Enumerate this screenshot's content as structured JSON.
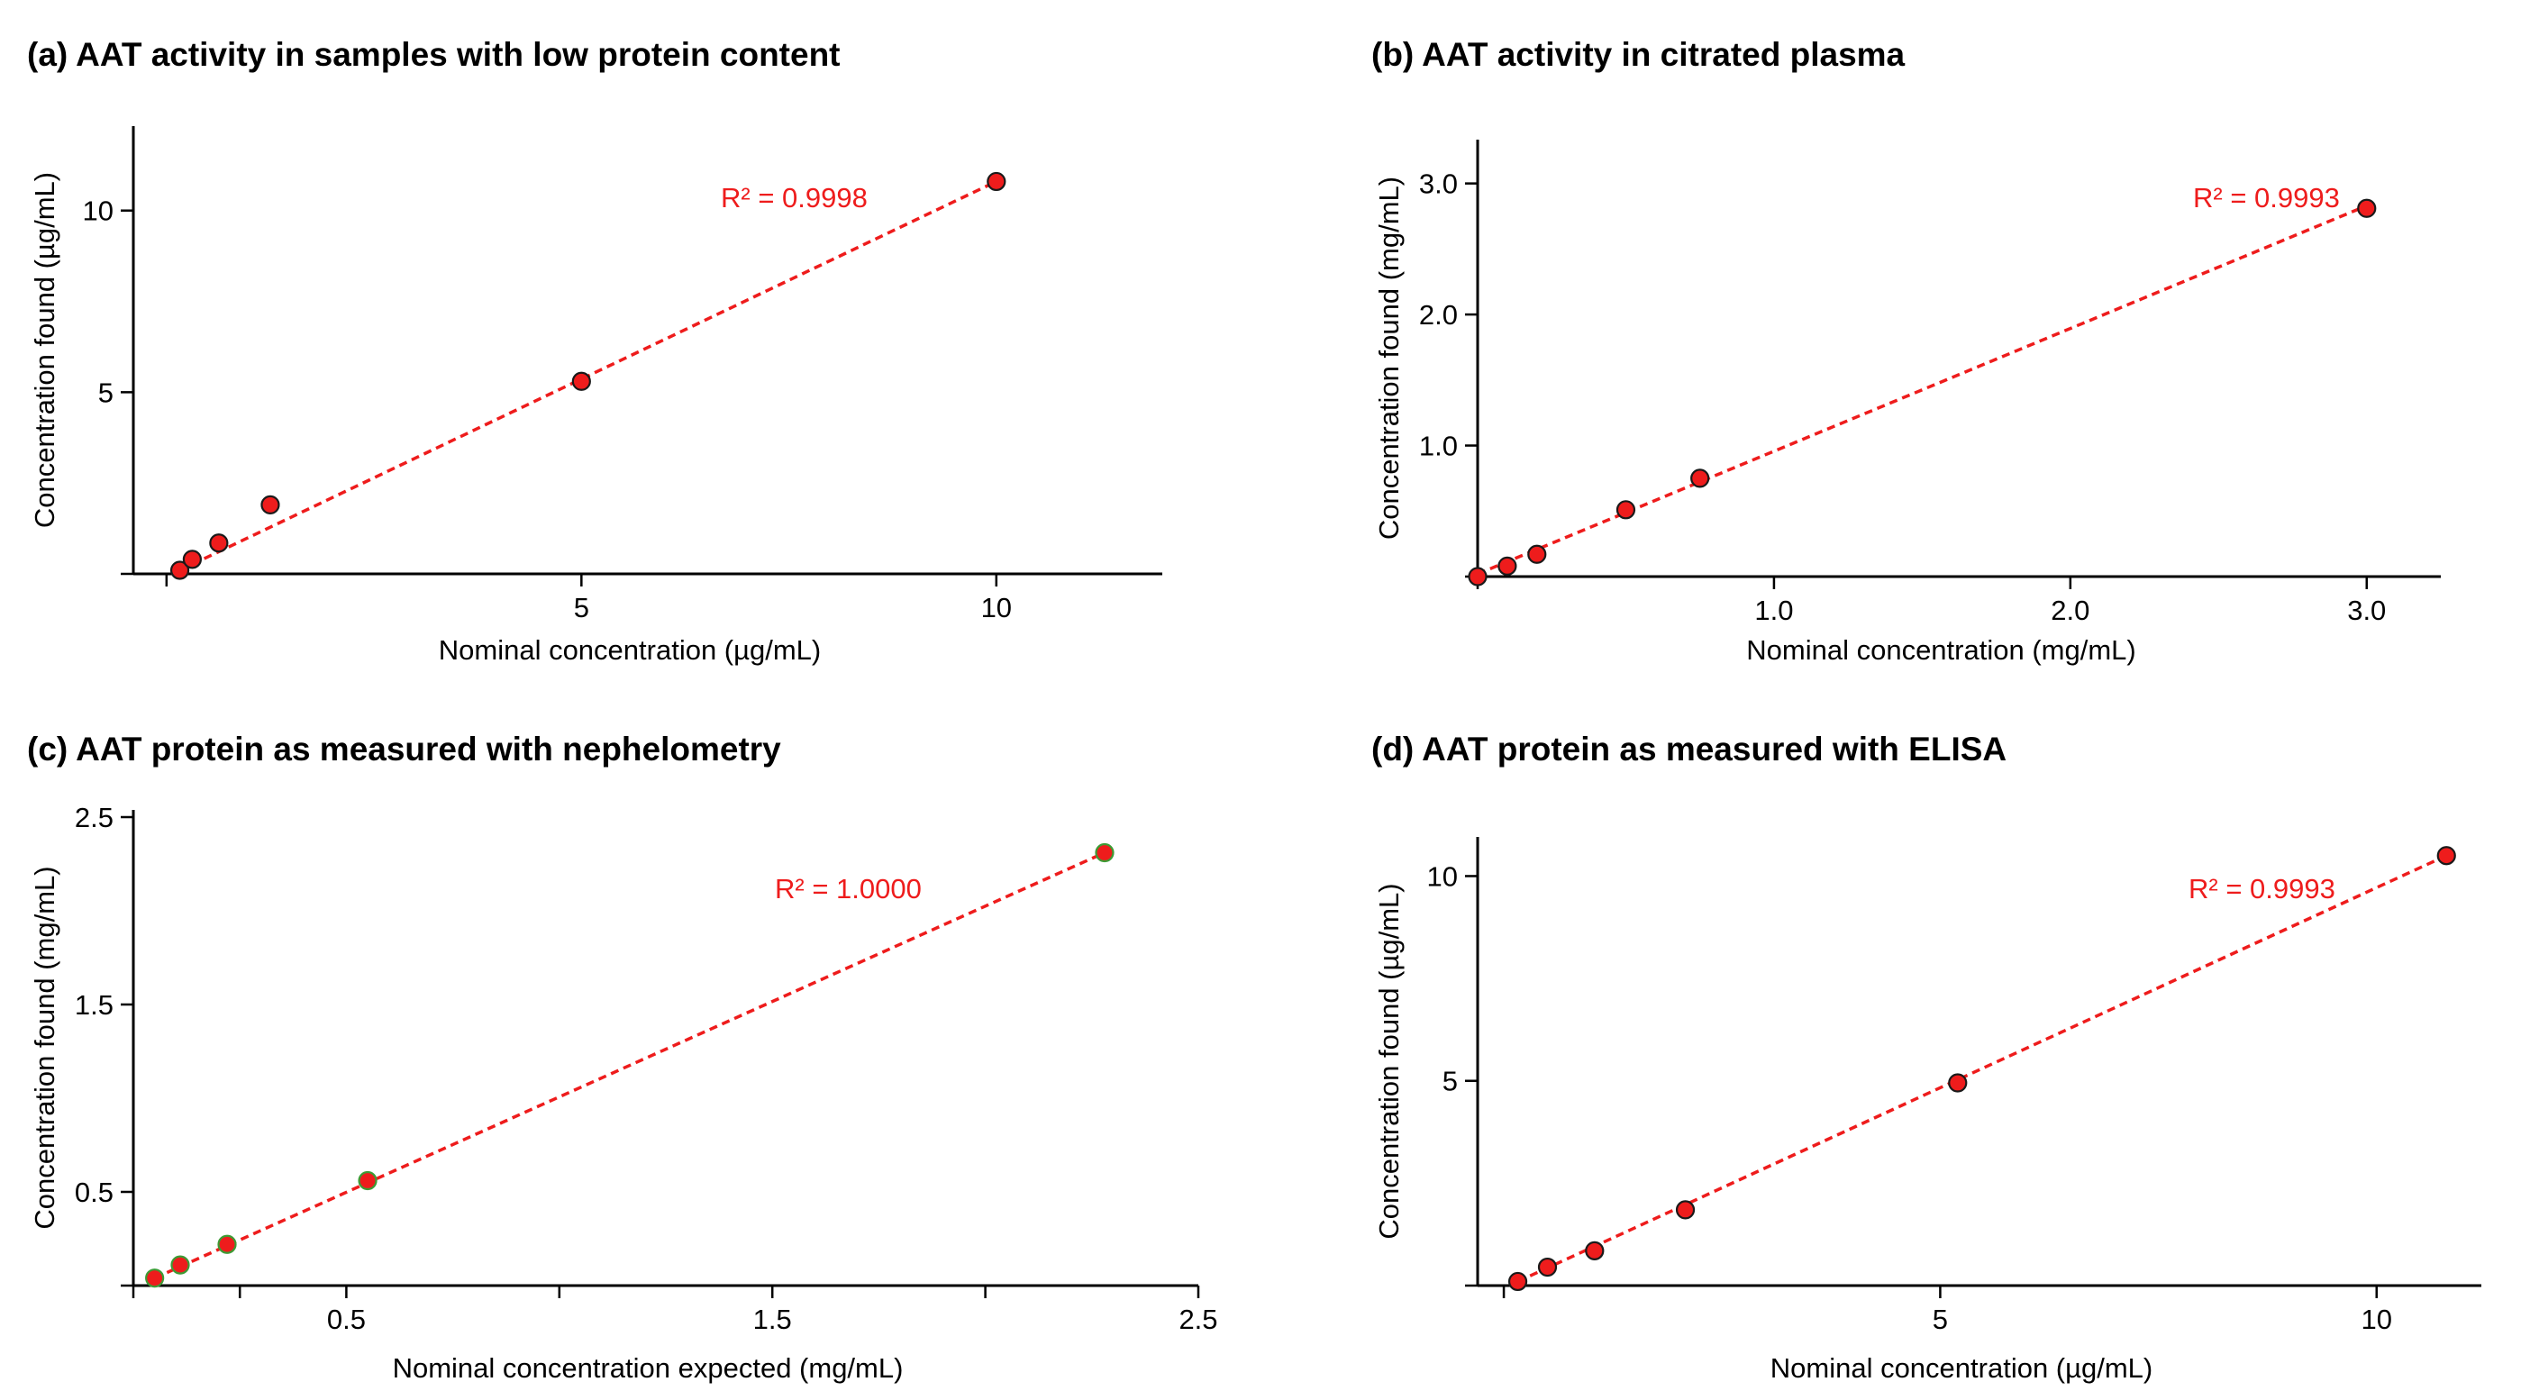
{
  "colors": {
    "fit": "#ee1c1c",
    "point_fill": "#ee1c1c",
    "point_stroke": "#1a1a1a",
    "point_stroke_c": "#3d9b35",
    "r2": "#ee1c1c"
  },
  "chart_data": [
    {
      "id": "a",
      "type": "scatter",
      "title": "(a) AAT activity in samples with low protein content",
      "xlabel": "Nominal concentration (µg/mL)",
      "ylabel": "Concentration found (µg/mL)",
      "xlim": [
        -0.4,
        12.0
      ],
      "ylim": [
        0,
        12.2
      ],
      "xticks": [
        {
          "v": 0,
          "label": ""
        },
        {
          "v": 5,
          "label": "5"
        },
        {
          "v": 10,
          "label": "10"
        }
      ],
      "yticks": [
        {
          "v": 0,
          "label": ""
        },
        {
          "v": 5,
          "label": "5"
        },
        {
          "v": 10,
          "label": "10"
        }
      ],
      "x": [
        0.16,
        0.31,
        0.63,
        1.25,
        5.0,
        10.0
      ],
      "y": [
        0.1,
        0.4,
        0.85,
        1.9,
        5.3,
        10.8
      ],
      "fit": [
        [
          0.16,
          0.1
        ],
        [
          10.0,
          10.8
        ]
      ],
      "r2": "R² = 0.9998"
    },
    {
      "id": "b",
      "type": "scatter",
      "title": "(b) AAT activity in citrated plasma",
      "xlabel": "Nominal concentration (mg/mL)",
      "ylabel": "Concentration found (mg/mL)",
      "xlim": [
        0,
        3.25
      ],
      "ylim": [
        0,
        3.3
      ],
      "xticks": [
        {
          "v": 0,
          "label": ""
        },
        {
          "v": 1,
          "label": "1.0"
        },
        {
          "v": 2,
          "label": "2.0"
        },
        {
          "v": 3,
          "label": "3.0"
        }
      ],
      "yticks": [
        {
          "v": 0,
          "label": ""
        },
        {
          "v": 1,
          "label": "1.0"
        },
        {
          "v": 2,
          "label": "2.0"
        },
        {
          "v": 3,
          "label": "3.0"
        }
      ],
      "x": [
        0.0,
        0.1,
        0.2,
        0.5,
        0.75,
        3.0
      ],
      "y": [
        0.0,
        0.08,
        0.17,
        0.51,
        0.75,
        2.81
      ],
      "fit": [
        [
          0.0,
          0.02
        ],
        [
          3.0,
          2.83
        ]
      ],
      "r2": "R² = 0.9993"
    },
    {
      "id": "c",
      "type": "scatter",
      "title": "(c) AAT protein as measured with nephelometry",
      "xlabel": "Nominal concentration expected (mg/mL)",
      "ylabel": "Concentration found (mg/mL)",
      "xlim": [
        0,
        2.5
      ],
      "ylim": [
        0,
        2.5
      ],
      "xticks": [
        {
          "v": 0,
          "label": ""
        },
        {
          "v": 0.25,
          "label": ""
        },
        {
          "v": 0.5,
          "label": "0.5"
        },
        {
          "v": 1.0,
          "label": ""
        },
        {
          "v": 1.5,
          "label": "1.5"
        },
        {
          "v": 2.0,
          "label": ""
        },
        {
          "v": 2.5,
          "label": "2.5"
        }
      ],
      "yticks": [
        {
          "v": 0,
          "label": ""
        },
        {
          "v": 0.5,
          "label": "0.5"
        },
        {
          "v": 1.5,
          "label": "1.5"
        },
        {
          "v": 2.5,
          "label": "2.5"
        }
      ],
      "x": [
        0.05,
        0.11,
        0.22,
        0.55,
        2.28
      ],
      "y": [
        0.04,
        0.11,
        0.22,
        0.56,
        2.31
      ],
      "fit": [
        [
          0.05,
          0.04
        ],
        [
          2.28,
          2.31
        ]
      ],
      "r2": "R² = 1.0000"
    },
    {
      "id": "d",
      "type": "scatter",
      "title": "(d) AAT protein as measured with ELISA",
      "xlabel": "Nominal concentration (µg/mL)",
      "ylabel": "Concentration found (µg/mL)",
      "xlim": [
        -0.3,
        11.2
      ],
      "ylim": [
        0,
        11.0
      ],
      "xticks": [
        {
          "v": 0,
          "label": ""
        },
        {
          "v": 5,
          "label": "5"
        },
        {
          "v": 10,
          "label": "10"
        }
      ],
      "yticks": [
        {
          "v": 0,
          "label": ""
        },
        {
          "v": 5,
          "label": "5"
        },
        {
          "v": 10,
          "label": "10"
        }
      ],
      "x": [
        0.16,
        0.5,
        1.04,
        2.08,
        5.2,
        10.8
      ],
      "y": [
        0.1,
        0.45,
        0.85,
        1.85,
        4.95,
        10.5
      ],
      "fit": [
        [
          0.16,
          0.1
        ],
        [
          10.8,
          10.5
        ]
      ],
      "r2": "R² = 0.9993"
    }
  ]
}
